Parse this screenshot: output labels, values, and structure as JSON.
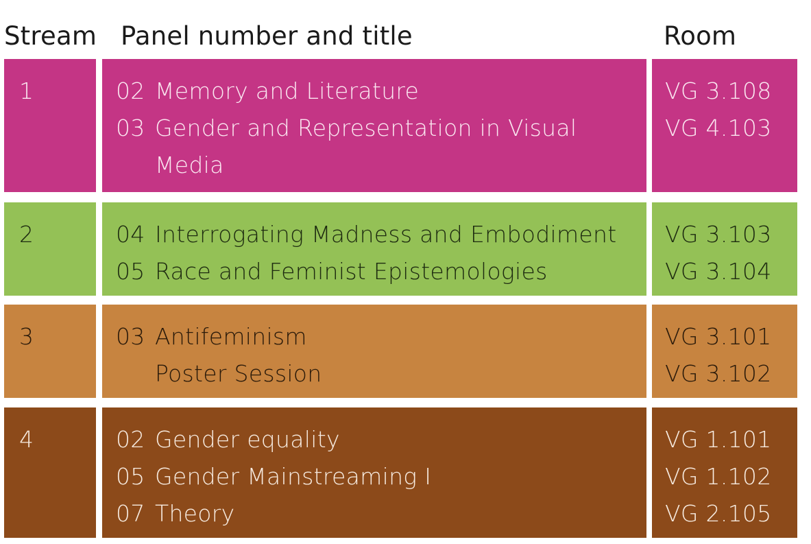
{
  "headers": {
    "stream": "Stream",
    "panel": "Panel number and title",
    "room": "Room"
  },
  "streams": [
    {
      "number": "1",
      "color": "#c43585",
      "panels": [
        {
          "num": "02",
          "title": "Memory and Literature"
        },
        {
          "num": "03",
          "title": "Gender and Representation in Visual Media"
        }
      ],
      "rooms": [
        "VG 3.108",
        "VG 4.103"
      ]
    },
    {
      "number": "2",
      "color": "#94c156",
      "panels": [
        {
          "num": "04",
          "title": "Interrogating Madness and Embodiment"
        },
        {
          "num": "05",
          "title": "Race and Feminist Epistemologies"
        }
      ],
      "rooms": [
        "VG 3.103",
        "VG 3.104"
      ]
    },
    {
      "number": "3",
      "color": "#c78440",
      "panels": [
        {
          "num": "03",
          "title": "Antifeminism"
        },
        {
          "num": "",
          "title": "Poster Session"
        }
      ],
      "rooms": [
        "VG 3.101",
        "VG 3.102"
      ]
    },
    {
      "number": "4",
      "color": "#8c4a1a",
      "panels": [
        {
          "num": "02",
          "title": "Gender equality"
        },
        {
          "num": "05",
          "title": "Gender Mainstreaming I"
        },
        {
          "num": "07",
          "title": "Theory"
        }
      ],
      "rooms": [
        "VG 1.101",
        "VG 1.102",
        "VG 2.105"
      ]
    }
  ]
}
